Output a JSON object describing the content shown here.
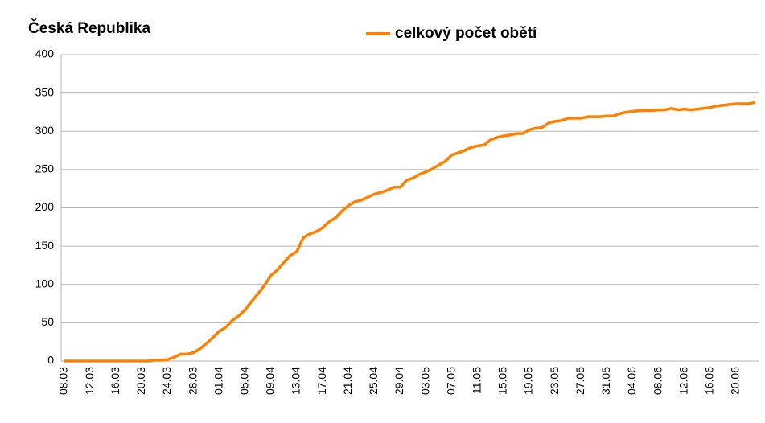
{
  "chart_data": {
    "type": "line",
    "title": "Česká Republika",
    "categories": [
      "08.03",
      null,
      null,
      null,
      "12.03",
      null,
      null,
      null,
      "16.03",
      null,
      null,
      null,
      "20.03",
      null,
      null,
      null,
      "24.03",
      null,
      null,
      null,
      "28.03",
      null,
      null,
      null,
      "01.04",
      null,
      null,
      null,
      "05.04",
      null,
      null,
      null,
      "09.04",
      null,
      null,
      null,
      "13.04",
      null,
      null,
      null,
      "17.04",
      null,
      null,
      null,
      "21.04",
      null,
      null,
      null,
      "25.04",
      null,
      null,
      null,
      "29.04",
      null,
      null,
      null,
      "03.05",
      null,
      null,
      null,
      "07.05",
      null,
      null,
      null,
      "11.05",
      null,
      null,
      null,
      "15.05",
      null,
      null,
      null,
      "19.05",
      null,
      null,
      null,
      "23.05",
      null,
      null,
      null,
      "27.05",
      null,
      null,
      null,
      "31.05",
      null,
      null,
      null,
      "04.06",
      null,
      null,
      null,
      "08.06",
      null,
      null,
      null,
      "12.06",
      null,
      null,
      null,
      "16.06",
      null,
      null,
      null,
      "20.06",
      null,
      null,
      null
    ],
    "series": [
      {
        "name": "celkový počet obětí",
        "color": "#ff8000",
        "values": [
          0,
          0,
          0,
          0,
          0,
          0,
          0,
          0,
          0,
          0,
          0,
          0,
          0,
          0,
          1,
          1,
          2,
          5,
          9,
          9,
          11,
          16,
          23,
          31,
          39,
          44,
          53,
          59,
          67,
          78,
          88,
          99,
          112,
          119,
          129,
          138,
          143,
          161,
          166,
          169,
          174,
          182,
          187,
          196,
          203,
          208,
          210,
          214,
          218,
          220,
          223,
          227,
          227,
          236,
          239,
          244,
          247,
          251,
          256,
          261,
          269,
          272,
          275,
          279,
          281,
          282,
          289,
          292,
          294,
          295,
          297,
          297,
          302,
          304,
          305,
          311,
          313,
          314,
          317,
          317,
          317,
          319,
          319,
          319,
          320,
          320,
          323,
          325,
          326,
          327,
          327,
          327,
          328,
          328,
          330,
          328,
          329,
          328,
          329,
          330,
          331,
          333,
          334,
          335,
          336,
          336,
          336,
          338
        ]
      }
    ],
    "ylim": [
      0,
      400
    ],
    "yticks": [
      0,
      50,
      100,
      150,
      200,
      250,
      300,
      350,
      400
    ],
    "grid": true,
    "legend": "top"
  }
}
